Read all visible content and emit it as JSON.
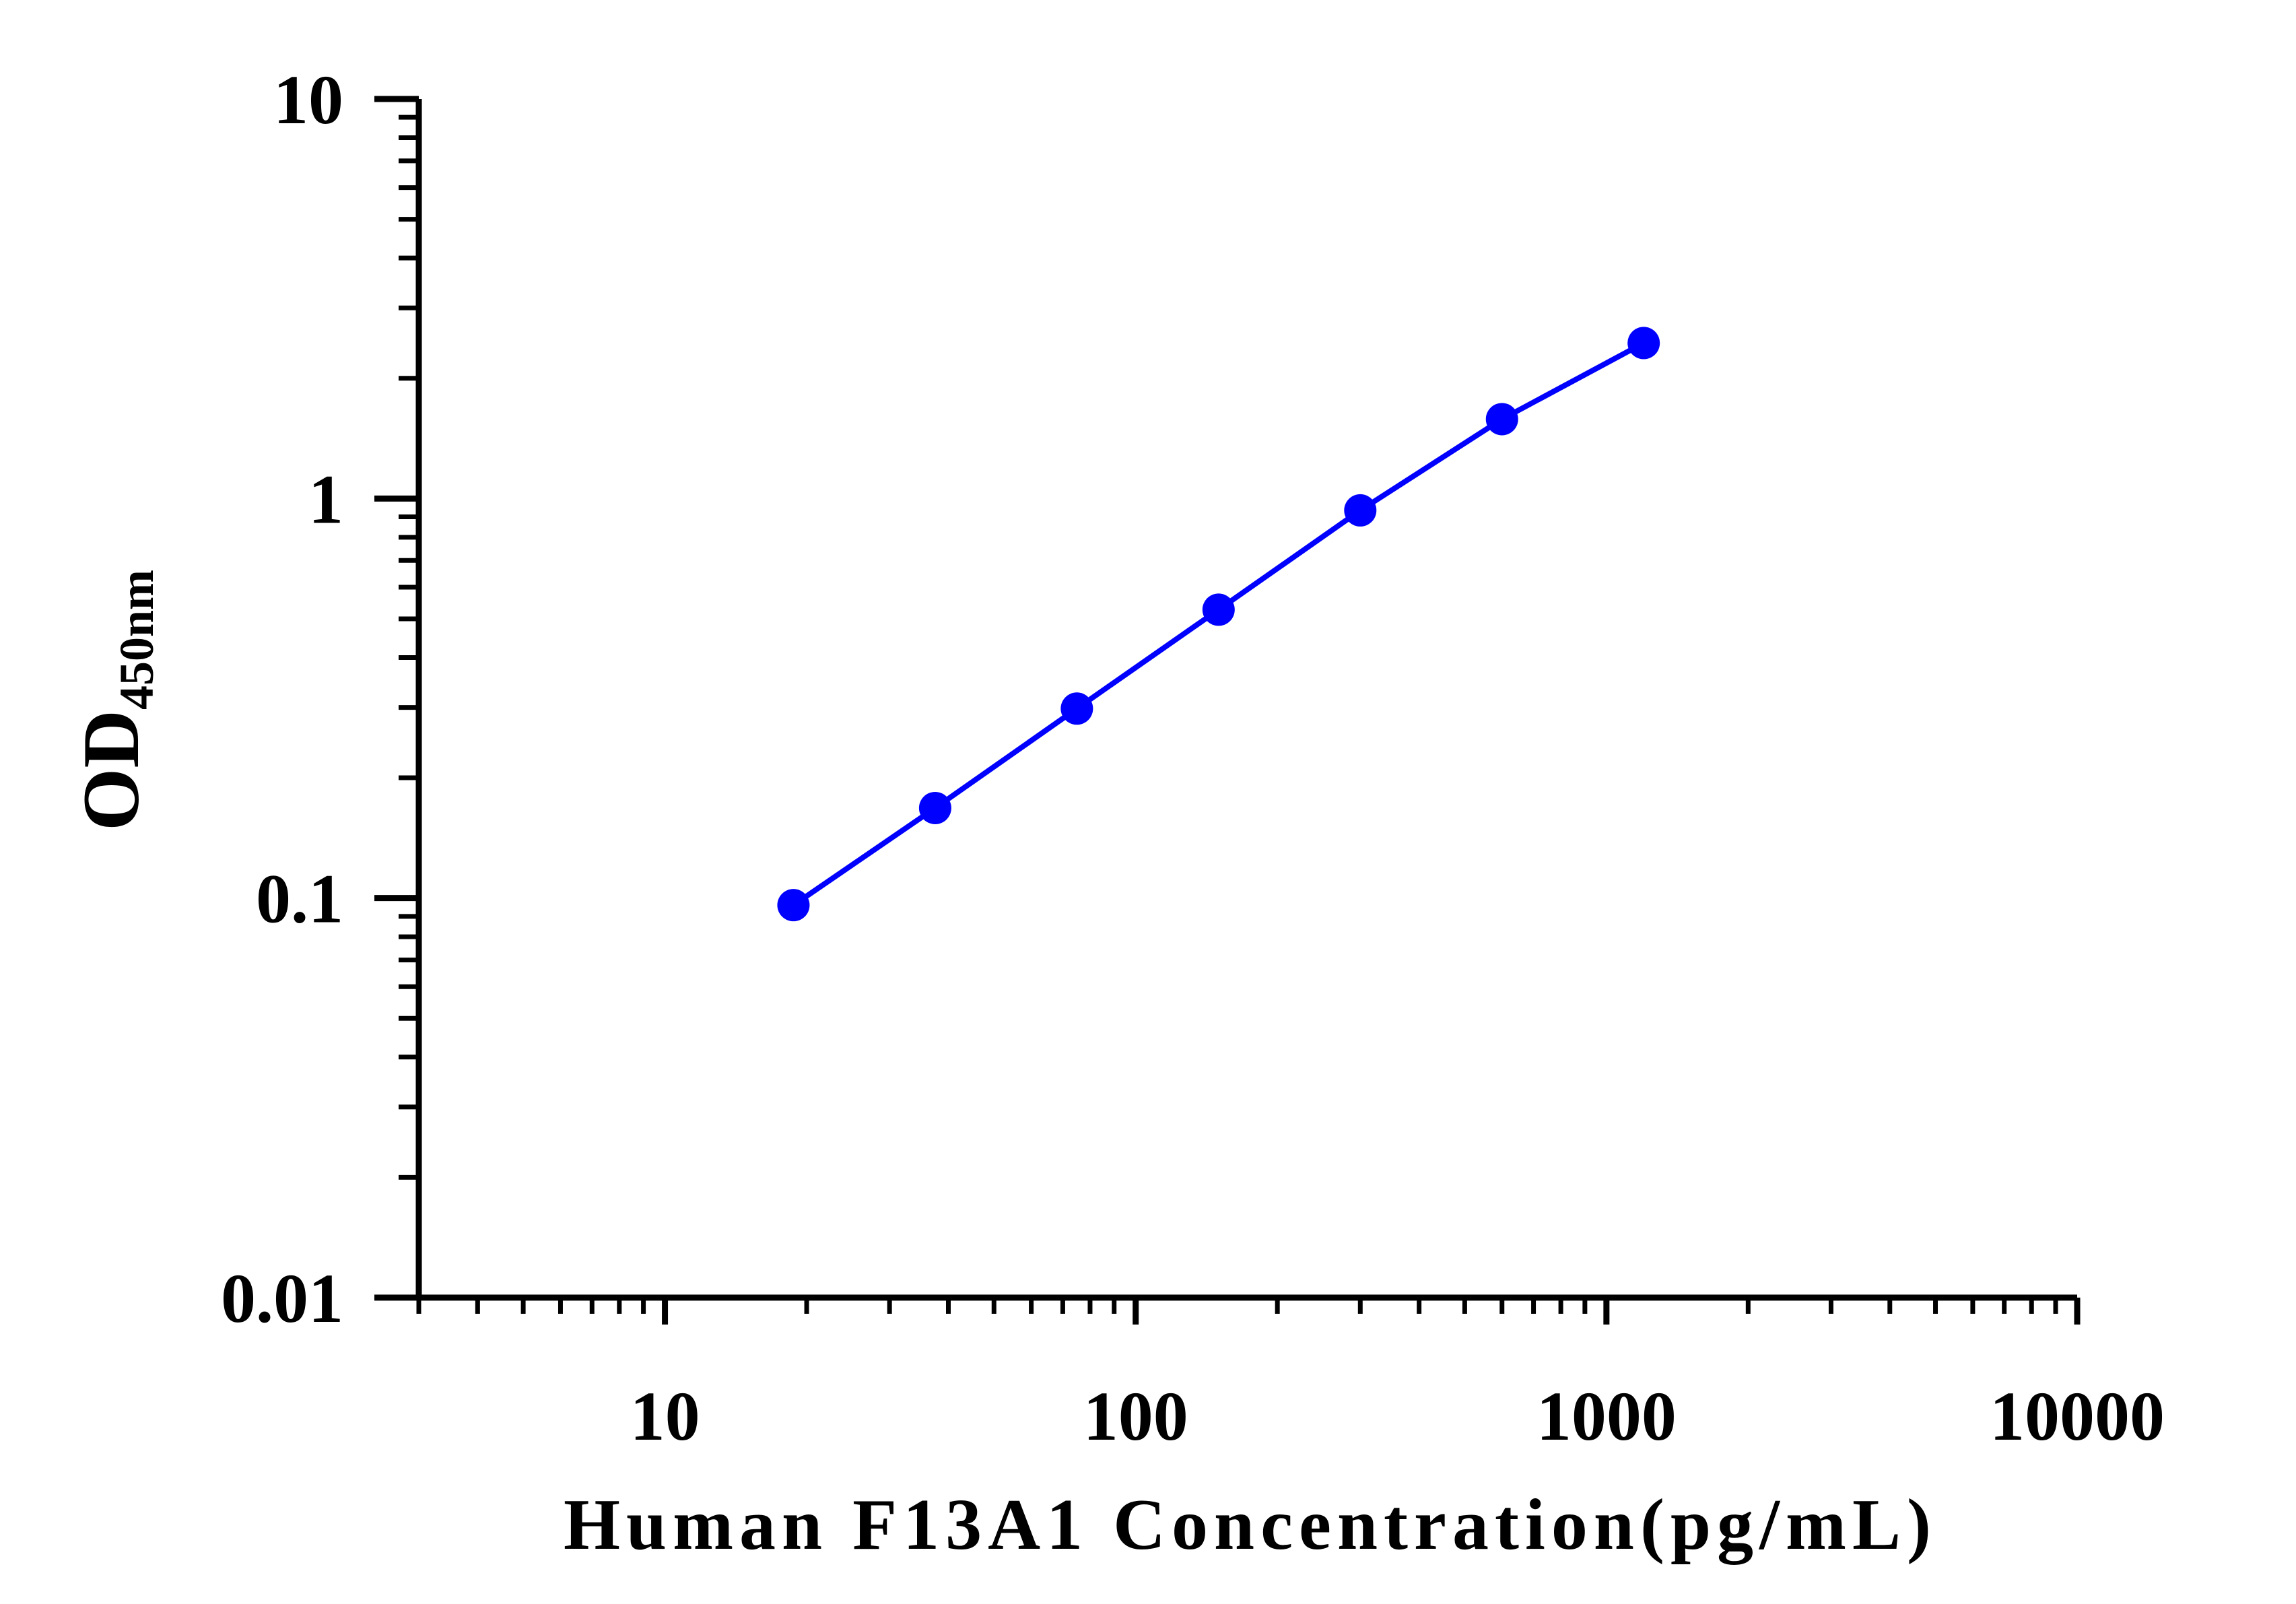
{
  "chart_data": {
    "type": "line",
    "x_label": "Human F13A1 Concentration(pg/mL)",
    "y_label": "OD",
    "y_label_subscript": "450nm",
    "x": [
      18.75,
      37.5,
      75,
      150,
      300,
      600,
      1200
    ],
    "series": [
      {
        "color": "#0000ff",
        "values": [
          0.096,
          0.168,
          0.298,
          0.527,
          0.934,
          1.58,
          2.45
        ]
      }
    ],
    "xlim": [
      3,
      10000
    ],
    "xticks": [
      10,
      100,
      1000,
      10000
    ],
    "ylim": [
      0.01,
      10
    ],
    "yticks": [
      0.01,
      0.1,
      1,
      10
    ],
    "xscale": "log",
    "yscale": "log",
    "minor_ticks": true,
    "grid": false
  }
}
